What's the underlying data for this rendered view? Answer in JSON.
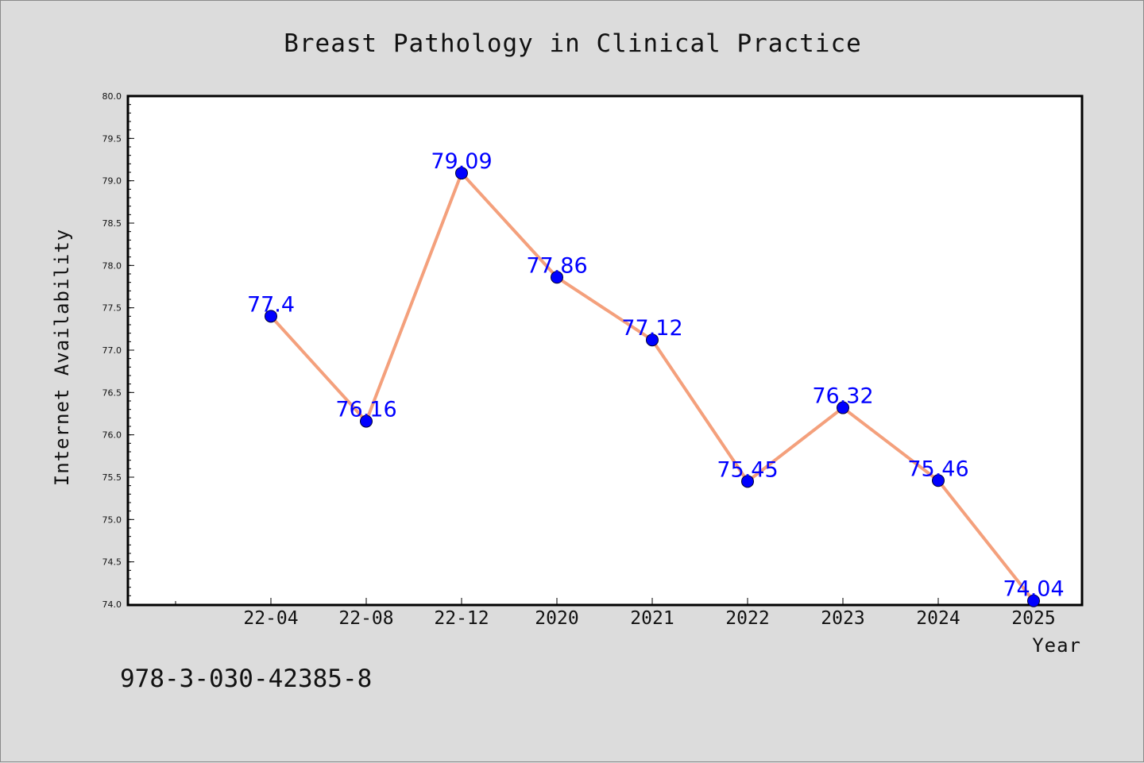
{
  "chart_data": {
    "type": "line",
    "title": "Breast Pathology in Clinical Practice",
    "xlabel": "Year",
    "ylabel": "Internet Availability",
    "categories": [
      "22-04",
      "22-08",
      "22-12",
      "2020",
      "2021",
      "2022",
      "2023",
      "2024",
      "2025"
    ],
    "series": [
      {
        "values": [
          77.4,
          76.16,
          79.09,
          77.86,
          77.12,
          75.45,
          76.32,
          75.46,
          74.04
        ],
        "data_labels": [
          "77.4",
          "76.16",
          "79.09",
          "77.86",
          "77.12",
          "75.45",
          "76.32",
          "75.46",
          "74.04"
        ],
        "line_color": "#f4a07c",
        "marker_color": "#0000ff"
      }
    ],
    "ylim": [
      74.0,
      80.0
    ],
    "yticks": [
      "74.0",
      "74.5",
      "75.0",
      "75.5",
      "76.0",
      "76.5",
      "77.0",
      "77.5",
      "78.0",
      "78.5",
      "79.0",
      "79.5",
      "80.0"
    ],
    "grid": false,
    "legend": "none"
  },
  "footer": {
    "isbn": "978-3-030-42385-8"
  },
  "colors": {
    "background": "#dcdcdc",
    "plot_background": "#ffffff",
    "label_color": "#0000ff"
  }
}
